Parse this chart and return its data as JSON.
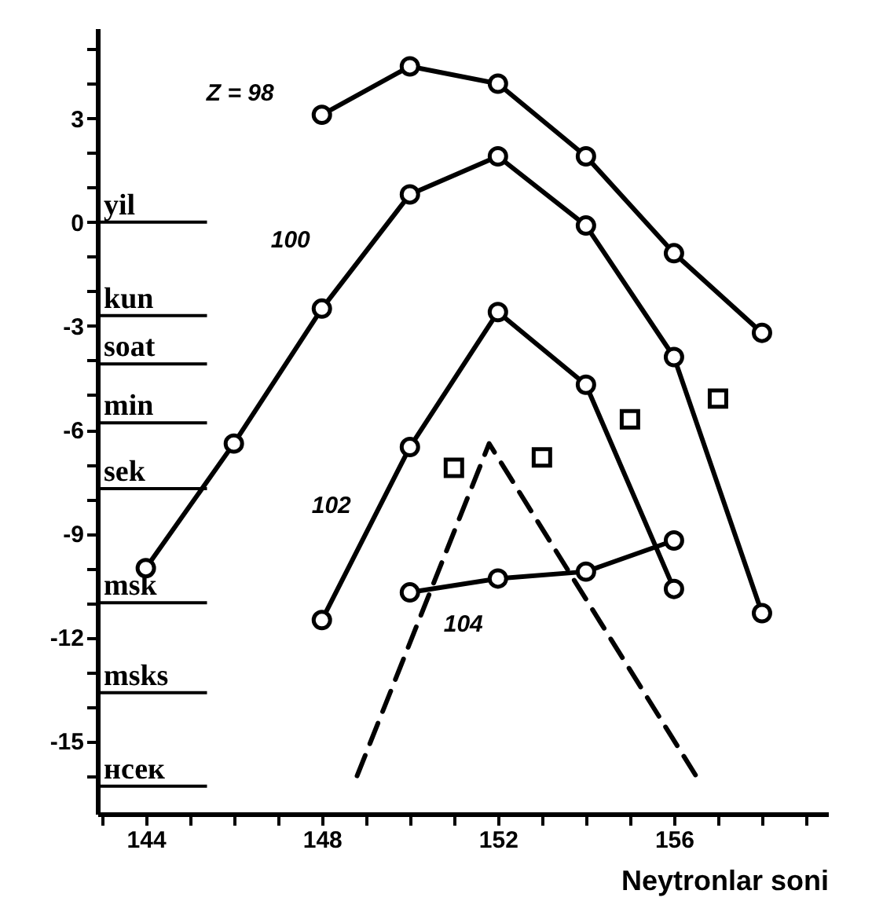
{
  "chart_data": {
    "type": "line",
    "xlabel": "Neytronlar soni",
    "xlim": [
      142.9,
      159.5
    ],
    "ylim": [
      -17.1,
      5.6
    ],
    "xticks": [
      {
        "value": 143,
        "label": null
      },
      144,
      {
        "value": 145,
        "label": null
      },
      {
        "value": 146,
        "label": null
      },
      {
        "value": 147,
        "label": null
      },
      148,
      {
        "value": 149,
        "label": null
      },
      {
        "value": 150,
        "label": null
      },
      {
        "value": 151,
        "label": null
      },
      152,
      {
        "value": 153,
        "label": null
      },
      {
        "value": 154,
        "label": null
      },
      {
        "value": 155,
        "label": null
      },
      156,
      {
        "value": 157,
        "label": null
      },
      {
        "value": 158,
        "label": null
      },
      {
        "value": 159,
        "label": null
      }
    ],
    "yticks": [
      {
        "value": 5,
        "label": null
      },
      {
        "value": 4,
        "label": null
      },
      3,
      {
        "value": 2,
        "label": null
      },
      {
        "value": 1,
        "label": null
      },
      0,
      {
        "value": -1,
        "label": null
      },
      {
        "value": -2,
        "label": null
      },
      -3,
      {
        "value": -4,
        "label": null
      },
      {
        "value": -5,
        "label": null
      },
      -6,
      {
        "value": -7,
        "label": null
      },
      {
        "value": -8,
        "label": null
      },
      -9,
      {
        "value": -10,
        "label": null
      },
      {
        "value": -11,
        "label": null
      },
      -12,
      {
        "value": -13,
        "label": null
      },
      {
        "value": -14,
        "label": null
      },
      -15,
      {
        "value": -16,
        "label": null
      }
    ],
    "grid": false,
    "marker": "circle",
    "line_style": "solid",
    "series": [
      {
        "name": "Z = 98",
        "color": "#000000",
        "x": [
          148,
          150,
          152,
          154,
          156,
          158
        ],
        "values": [
          3.1,
          4.5,
          4.0,
          1.9,
          -0.9,
          -3.2
        ]
      },
      {
        "name": "100",
        "color": "#000000",
        "x": [
          144,
          146,
          148,
          150,
          152,
          154,
          156,
          158
        ],
        "values": [
          -10.0,
          -6.4,
          -2.5,
          0.8,
          1.9,
          -0.1,
          -3.9,
          -11.3
        ]
      },
      {
        "name": "102",
        "color": "#000000",
        "x": [
          148,
          150,
          152,
          154,
          156
        ],
        "values": [
          -11.5,
          -6.5,
          -2.6,
          -4.7,
          -10.6
        ]
      },
      {
        "name": "104",
        "color": "#000000",
        "x": [
          150,
          152,
          154,
          156
        ],
        "values": [
          -10.7,
          -10.3,
          -10.1,
          -9.2
        ]
      },
      {
        "type": "scatter",
        "marker": "square",
        "color": "#000000",
        "x": [
          151,
          153,
          155,
          157
        ],
        "values": [
          -7.1,
          -6.8,
          -5.7,
          -5.1
        ]
      },
      {
        "color": "#000000",
        "marker": "none",
        "line_style": "dashed",
        "x": [
          148.8,
          151.8,
          156.5
        ],
        "values": [
          -16.0,
          -6.4,
          -16.0
        ]
      }
    ],
    "ref_lines": [
      {
        "axis": "y",
        "value": 0,
        "label": "yil"
      },
      {
        "axis": "y",
        "value": -2.7,
        "label": "kun"
      },
      {
        "axis": "y",
        "value": -4.1,
        "label": "soat"
      },
      {
        "axis": "y",
        "value": -5.8,
        "label": "min"
      },
      {
        "axis": "y",
        "value": -7.7,
        "label": "sek"
      },
      {
        "axis": "y",
        "value": -11,
        "label": "msk"
      },
      {
        "axis": "y",
        "value": -13.6,
        "label": "msks"
      },
      {
        "axis": "y",
        "value": -16.3,
        "label": "нсек"
      }
    ]
  }
}
